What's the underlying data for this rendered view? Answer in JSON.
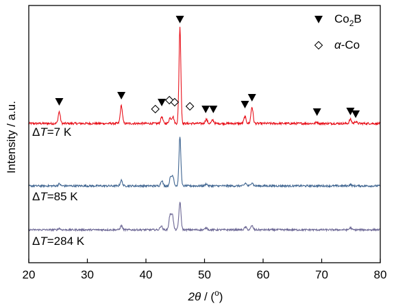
{
  "chart_data": {
    "type": "line",
    "xlabel_parts": {
      "symbol": "2θ",
      "unit_prefix": " / (",
      "unit_sup": "o",
      "unit_suffix": ")"
    },
    "ylabel": "Intensity / a.u.",
    "xlim": [
      20,
      80
    ],
    "xticks": [
      "20",
      "30",
      "40",
      "50",
      "60",
      "70",
      "80"
    ],
    "y_ticks_shown": false,
    "grid": false,
    "legend_position": "top-right",
    "legend": [
      {
        "marker": "filled-down-triangle",
        "base": "Co",
        "sub": "2",
        "tail": "B"
      },
      {
        "marker": "open-diamond",
        "prefix": "α",
        "tail": "-Co"
      }
    ],
    "series": [
      {
        "name_parts": {
          "delta": "Δ",
          "var": "T",
          "value": "=7 K"
        },
        "color": "#e8101a",
        "baseline": 0,
        "noise": 1.6,
        "peaks": [
          {
            "x": 25.2,
            "h": 17
          },
          {
            "x": 35.8,
            "h": 26
          },
          {
            "x": 42.7,
            "h": 10
          },
          {
            "x": 44.1,
            "h": 8
          },
          {
            "x": 44.6,
            "h": 10
          },
          {
            "x": 45.8,
            "h": 140
          },
          {
            "x": 50.3,
            "h": 6
          },
          {
            "x": 51.4,
            "h": 5
          },
          {
            "x": 56.9,
            "h": 10
          },
          {
            "x": 58.1,
            "h": 24
          },
          {
            "x": 69.2,
            "h": 2
          },
          {
            "x": 74.9,
            "h": 6
          },
          {
            "x": 75.8,
            "h": 3
          }
        ],
        "markers": [
          {
            "type": "filled-down-triangle",
            "x": 25.2,
            "h": 32
          },
          {
            "type": "filled-down-triangle",
            "x": 35.8,
            "h": 41
          },
          {
            "type": "filled-down-triangle",
            "x": 42.7,
            "h": 31
          },
          {
            "type": "filled-down-triangle",
            "x": 45.8,
            "h": 152
          },
          {
            "type": "filled-down-triangle",
            "x": 50.2,
            "h": 21
          },
          {
            "type": "filled-down-triangle",
            "x": 51.5,
            "h": 21
          },
          {
            "type": "filled-down-triangle",
            "x": 56.9,
            "h": 28
          },
          {
            "type": "filled-down-triangle",
            "x": 58.1,
            "h": 38
          },
          {
            "type": "filled-down-triangle",
            "x": 69.2,
            "h": 17
          },
          {
            "type": "filled-down-triangle",
            "x": 74.9,
            "h": 18
          },
          {
            "type": "filled-down-triangle",
            "x": 75.8,
            "h": 14
          },
          {
            "type": "open-diamond",
            "x": 41.6,
            "h": 21
          },
          {
            "type": "open-diamond",
            "x": 44.0,
            "h": 34
          },
          {
            "type": "open-diamond",
            "x": 44.9,
            "h": 31
          },
          {
            "type": "open-diamond",
            "x": 47.5,
            "h": 25
          }
        ]
      },
      {
        "name_parts": {
          "delta": "Δ",
          "var": "T",
          "value": "=85 K"
        },
        "color": "#3e6490",
        "baseline": -91,
        "noise": 1.4,
        "peaks": [
          {
            "x": 25.2,
            "h": 3
          },
          {
            "x": 35.8,
            "h": 8
          },
          {
            "x": 42.7,
            "h": 8
          },
          {
            "x": 44.2,
            "h": 12
          },
          {
            "x": 44.6,
            "h": 14
          },
          {
            "x": 45.8,
            "h": 72
          },
          {
            "x": 50.3,
            "h": 3
          },
          {
            "x": 57.0,
            "h": 4
          },
          {
            "x": 58.1,
            "h": 5
          },
          {
            "x": 74.9,
            "h": 2
          }
        ],
        "markers": []
      },
      {
        "name_parts": {
          "delta": "Δ",
          "var": "T",
          "value": "=284 K"
        },
        "color": "#6a6593",
        "baseline": -155,
        "noise": 1.3,
        "peaks": [
          {
            "x": 25.2,
            "h": 2
          },
          {
            "x": 35.8,
            "h": 6
          },
          {
            "x": 42.6,
            "h": 6
          },
          {
            "x": 44.1,
            "h": 20
          },
          {
            "x": 44.5,
            "h": 22
          },
          {
            "x": 45.8,
            "h": 40
          },
          {
            "x": 50.3,
            "h": 3
          },
          {
            "x": 57.0,
            "h": 4
          },
          {
            "x": 58.1,
            "h": 6
          },
          {
            "x": 74.9,
            "h": 3
          }
        ],
        "markers": []
      }
    ]
  }
}
